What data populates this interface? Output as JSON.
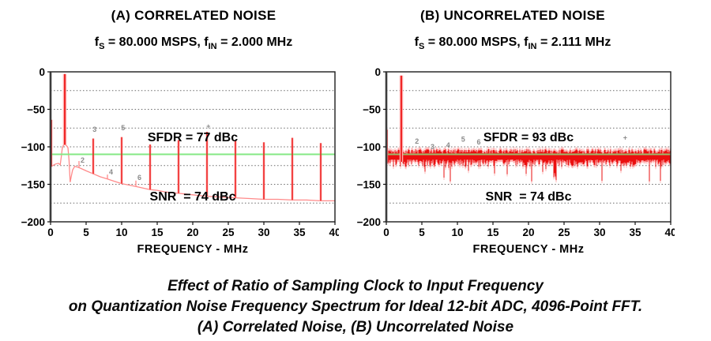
{
  "figure": {
    "caption_lines": [
      "Effect of Ratio of Sampling Clock to Input Frequency",
      "on Quantization Noise Frequency Spectrum for Ideal 12-bit ADC, 4096-Point FFT.",
      "(A) Correlated Noise, (B) Uncorrelated Noise"
    ],
    "colors": {
      "spectrum_red": "#ec1111",
      "spectrum_halo_pink": "#ffb9b9",
      "average_noise_line_green": "#84e884",
      "grid_gray": "#6b6b6b",
      "text_black": "#000000"
    }
  },
  "chart_data": [
    {
      "id": "A",
      "type": "line",
      "title": "(A) CORRELATED NOISE",
      "subtitle": {
        "f1": "f",
        "s1": "S",
        "m1": " = 80.000 MSPS, ",
        "f2": "f",
        "s2": "IN",
        "m2": " = 2.000 MHz"
      },
      "annotations": [
        "SFDR = 77 dBc",
        "SNR  = 74 dBc"
      ],
      "xlabel": "FREQUENCY - MHz",
      "xlim": [
        0,
        40
      ],
      "ylim": [
        -200,
        0
      ],
      "xticks": [
        0,
        5,
        10,
        15,
        20,
        25,
        30,
        35,
        40
      ],
      "xtick_labels": [
        "0",
        "5",
        "10",
        "15",
        "20",
        "25",
        "30",
        "35",
        "40"
      ],
      "yticks": [
        0,
        -50,
        -100,
        -150,
        -200
      ],
      "ytick_labels": [
        "0",
        "−50",
        "−100",
        "−150",
        "−200"
      ],
      "grid_step_db": 25,
      "avg_noise_line_db": -110,
      "sfdr_dbc": 77,
      "snr_dbc": 74,
      "fundamental": {
        "f": 2.0,
        "db": -3
      },
      "dc_spike": {
        "f": 0.12,
        "db": -64
      },
      "noise_floor": [
        [
          0.0,
          -127
        ],
        [
          0.3,
          -125
        ],
        [
          0.7,
          -123
        ],
        [
          1.1,
          -122
        ],
        [
          1.35,
          -124
        ],
        [
          1.5,
          -114
        ],
        [
          1.65,
          -102
        ],
        [
          1.8,
          -98
        ],
        [
          2.0,
          -97
        ],
        [
          2.2,
          -98
        ],
        [
          2.45,
          -101
        ],
        [
          2.6,
          -118
        ],
        [
          2.75,
          -147
        ],
        [
          2.9,
          -140
        ],
        [
          3.1,
          -131
        ],
        [
          3.4,
          -126
        ],
        [
          3.8,
          -127
        ],
        [
          4.3,
          -129
        ],
        [
          5,
          -132
        ],
        [
          6,
          -136
        ],
        [
          7,
          -140
        ],
        [
          8,
          -143
        ],
        [
          9,
          -146
        ],
        [
          10,
          -149
        ],
        [
          11,
          -151
        ],
        [
          12,
          -153
        ],
        [
          13,
          -155
        ],
        [
          14,
          -157
        ],
        [
          15,
          -158
        ],
        [
          16,
          -160
        ],
        [
          17,
          -161
        ],
        [
          18,
          -162
        ],
        [
          19,
          -163
        ],
        [
          20,
          -164
        ],
        [
          22,
          -166
        ],
        [
          24,
          -167
        ],
        [
          26,
          -168
        ],
        [
          28,
          -169
        ],
        [
          30,
          -170
        ],
        [
          32,
          -170
        ],
        [
          34,
          -171
        ],
        [
          36,
          -171
        ],
        [
          38,
          -172
        ],
        [
          40,
          -172
        ]
      ],
      "spurs": [
        {
          "f": 6,
          "db": -89
        },
        {
          "f": 10,
          "db": -87
        },
        {
          "f": 14,
          "db": -97
        },
        {
          "f": 18,
          "db": -91
        },
        {
          "f": 22,
          "db": -80
        },
        {
          "f": 26,
          "db": -92
        },
        {
          "f": 30,
          "db": -94
        },
        {
          "f": 34,
          "db": -88
        },
        {
          "f": 38,
          "db": -95
        }
      ],
      "small_spurs": [
        {
          "f": 4,
          "db": -119
        },
        {
          "f": 8,
          "db": -137
        },
        {
          "f": 12,
          "db": -145
        }
      ],
      "harmonic_labels": [
        {
          "t": "3",
          "f": 6.2,
          "db": -80
        },
        {
          "t": "5",
          "f": 10.2,
          "db": -78
        },
        {
          "t": "+",
          "f": 22.2,
          "db": -76
        },
        {
          "t": "2",
          "f": 4.5,
          "db": -121
        },
        {
          "t": "4",
          "f": 8.5,
          "db": -137
        },
        {
          "t": "6",
          "f": 12.5,
          "db": -144
        }
      ]
    },
    {
      "id": "B",
      "type": "line",
      "title": "(B) UNCORRELATED NOISE",
      "subtitle": {
        "f1": "f",
        "s1": "S",
        "m1": " = 80.000 MSPS, ",
        "f2": "f",
        "s2": "IN",
        "m2": " = 2.111 MHz"
      },
      "annotations": [
        "SFDR = 93 dBc",
        "SNR  = 74 dBc"
      ],
      "xlabel": "FREQUENCY - MHz",
      "xlim": [
        0,
        40
      ],
      "ylim": [
        -200,
        0
      ],
      "xticks": [
        0,
        5,
        10,
        15,
        20,
        25,
        30,
        35,
        40
      ],
      "xtick_labels": [
        "0",
        "5",
        "10",
        "15",
        "20",
        "25",
        "30",
        "35",
        "40"
      ],
      "yticks": [
        0,
        -50,
        -100,
        -150,
        -200
      ],
      "ytick_labels": [
        "0",
        "−50",
        "−100",
        "−150",
        "−200"
      ],
      "grid_step_db": 25,
      "avg_noise_line_db": -110,
      "sfdr_dbc": 93,
      "snr_dbc": 74,
      "fundamental": {
        "f": 2.111,
        "db": -5
      },
      "dc_spike": {
        "f": 0.1,
        "db": -77
      },
      "noise": {
        "seed": 13,
        "top_db": -103,
        "base_bottom_db": -117,
        "dip_probability": 0.06,
        "min_db": -146,
        "mean_db": -112
      },
      "harmonic_labels": [
        {
          "t": "2",
          "f": 4.3,
          "db": -96
        },
        {
          "t": "3",
          "f": 6.5,
          "db": -103
        },
        {
          "t": "4",
          "f": 8.7,
          "db": -101
        },
        {
          "t": "5",
          "f": 10.8,
          "db": -93
        },
        {
          "t": "6",
          "f": 13.0,
          "db": -97
        },
        {
          "t": "+",
          "f": 33.6,
          "db": -91
        }
      ]
    }
  ]
}
